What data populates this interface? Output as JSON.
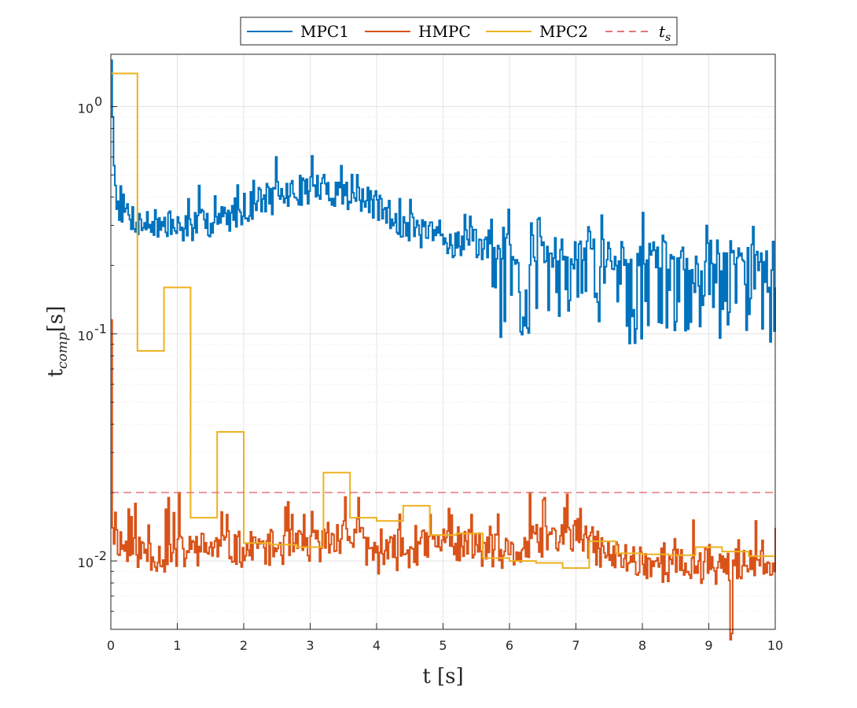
{
  "chart_data": {
    "type": "line",
    "xlabel": "t [s]",
    "ylabel": "t_comp[s]",
    "ylabel_main": "t",
    "ylabel_sub": "comp",
    "ylabel_rest": "[s]",
    "xlim": [
      0,
      10
    ],
    "ylim": [
      0.005,
      1.7
    ],
    "yscale": "log",
    "grid": true,
    "legend_position": "top-center",
    "x_ticks": [
      0,
      1,
      2,
      3,
      4,
      5,
      6,
      7,
      8,
      9,
      10
    ],
    "y_ticks": [
      {
        "value": 1,
        "base": "10",
        "exp": "0"
      },
      {
        "value": 0.1,
        "base": "10",
        "exp": "-1"
      },
      {
        "value": 0.01,
        "base": "10",
        "exp": "-2"
      }
    ],
    "series": [
      {
        "name": "MPC1",
        "color": "#0072BD",
        "style": "stairs-noisy",
        "step": 0.02,
        "seed": 7,
        "noise": 0.07,
        "dropout_after": 5.7,
        "dropout_prob": 0.33,
        "dropout_range": [
          0.09,
          0.17
        ],
        "spikes": [
          [
            0.0,
            1.6
          ],
          [
            0.02,
            0.9
          ],
          [
            0.04,
            0.55
          ],
          [
            0.06,
            0.45
          ]
        ],
        "trend": [
          [
            0,
            0.45
          ],
          [
            0.1,
            0.37
          ],
          [
            0.4,
            0.31
          ],
          [
            1.0,
            0.29
          ],
          [
            1.6,
            0.31
          ],
          [
            2.0,
            0.36
          ],
          [
            2.5,
            0.4
          ],
          [
            3.0,
            0.44
          ],
          [
            3.5,
            0.42
          ],
          [
            4.0,
            0.36
          ],
          [
            4.5,
            0.29
          ],
          [
            5.0,
            0.255
          ],
          [
            5.5,
            0.25
          ],
          [
            6.0,
            0.235
          ],
          [
            7.0,
            0.225
          ],
          [
            8.0,
            0.225
          ],
          [
            9.0,
            0.22
          ],
          [
            10.0,
            0.22
          ]
        ]
      },
      {
        "name": "HMPC",
        "color": "#D95319",
        "style": "stairs-noisy",
        "step": 0.02,
        "seed": 11,
        "noise": 0.08,
        "spikes": [
          [
            0.0,
            0.115
          ],
          [
            0.02,
            0.014
          ],
          [
            0.86,
            0.019
          ],
          [
            1.02,
            0.02
          ],
          [
            1.74,
            0.016
          ],
          [
            2.72,
            0.016
          ],
          [
            3.5,
            0.015
          ],
          [
            3.72,
            0.019
          ],
          [
            4.8,
            0.016
          ],
          [
            5.08,
            0.017
          ],
          [
            5.42,
            0.016
          ],
          [
            6.3,
            0.02
          ],
          [
            6.52,
            0.019
          ],
          [
            7.06,
            0.017
          ],
          [
            9.32,
            0.0045
          ],
          [
            9.34,
            0.0048
          ],
          [
            10.0,
            0.014
          ]
        ],
        "trend": [
          [
            0,
            0.0135
          ],
          [
            0.2,
            0.0115
          ],
          [
            0.8,
            0.0105
          ],
          [
            1.5,
            0.0115
          ],
          [
            2.0,
            0.0112
          ],
          [
            2.5,
            0.0115
          ],
          [
            3.0,
            0.0115
          ],
          [
            3.6,
            0.013
          ],
          [
            4.0,
            0.0105
          ],
          [
            5.0,
            0.012
          ],
          [
            5.5,
            0.0115
          ],
          [
            6.0,
            0.0105
          ],
          [
            6.5,
            0.0125
          ],
          [
            7.0,
            0.013
          ],
          [
            7.5,
            0.0105
          ],
          [
            8.5,
            0.0095
          ],
          [
            9.0,
            0.0095
          ],
          [
            10.0,
            0.0095
          ]
        ]
      },
      {
        "name": "MPC2",
        "color": "#EDB120",
        "style": "stairs",
        "points": [
          [
            0,
            1.4
          ],
          [
            0.4,
            0.084
          ],
          [
            0.8,
            0.16
          ],
          [
            1.2,
            0.0155
          ],
          [
            1.6,
            0.037
          ],
          [
            2.0,
            0.012
          ],
          [
            2.4,
            0.0118
          ],
          [
            2.8,
            0.0115
          ],
          [
            3.2,
            0.0245
          ],
          [
            3.6,
            0.0155
          ],
          [
            4.0,
            0.015
          ],
          [
            4.4,
            0.0175
          ],
          [
            4.8,
            0.013
          ],
          [
            5.2,
            0.0132
          ],
          [
            5.6,
            0.0103
          ],
          [
            6.0,
            0.01
          ],
          [
            6.4,
            0.0098
          ],
          [
            6.8,
            0.0093
          ],
          [
            7.2,
            0.0122
          ],
          [
            7.6,
            0.0108
          ],
          [
            8.0,
            0.0107
          ],
          [
            8.4,
            0.0106
          ],
          [
            8.8,
            0.0115
          ],
          [
            9.2,
            0.011
          ],
          [
            9.6,
            0.0105
          ],
          [
            10.0,
            0.0105
          ]
        ]
      },
      {
        "name": "t_s",
        "legend_main": "t",
        "legend_sub": "s",
        "color": "#E8777A",
        "style": "dashed",
        "value": 0.02
      }
    ]
  }
}
